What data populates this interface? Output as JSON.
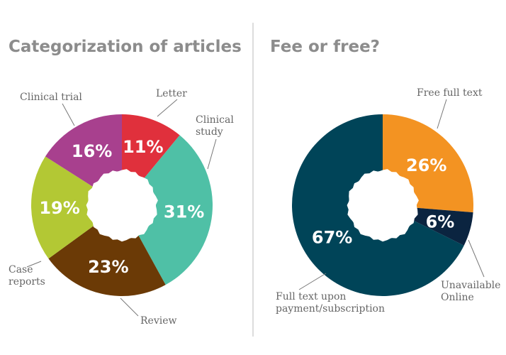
{
  "chart_data": [
    {
      "type": "pie",
      "title": "Categorization of articles",
      "slices": [
        {
          "label": "Letter",
          "label_lines": [
            "Letter"
          ],
          "value": 11,
          "display": "11%",
          "color": "#e0303c"
        },
        {
          "label": "Clinical study",
          "label_lines": [
            "Clinical",
            "study"
          ],
          "value": 31,
          "display": "31%",
          "color": "#4fc0a6"
        },
        {
          "label": "Review",
          "label_lines": [
            "Review"
          ],
          "value": 23,
          "display": "23%",
          "color": "#6b3a06"
        },
        {
          "label": "Case reports",
          "label_lines": [
            "Case",
            "reports"
          ],
          "value": 19,
          "display": "19%",
          "color": "#b3c834"
        },
        {
          "label": "Clinical trial",
          "label_lines": [
            "Clinical trial"
          ],
          "value": 16,
          "display": "16%",
          "color": "#a8408e"
        }
      ]
    },
    {
      "type": "pie",
      "title": "Fee or free?",
      "slices": [
        {
          "label": "Free full text",
          "label_lines": [
            "Free full text"
          ],
          "value": 26,
          "display": "26%",
          "color": "#f39322"
        },
        {
          "label": "Unavailable Online",
          "label_lines": [
            "Unavailable",
            "Online"
          ],
          "value": 6,
          "display": "6%",
          "color": "#0b2440"
        },
        {
          "label": "Full text upon payment/subscription",
          "label_lines": [
            "Full text upon",
            "payment/subscription"
          ],
          "value": 67,
          "display": "67%",
          "color": "#004458"
        }
      ]
    }
  ]
}
